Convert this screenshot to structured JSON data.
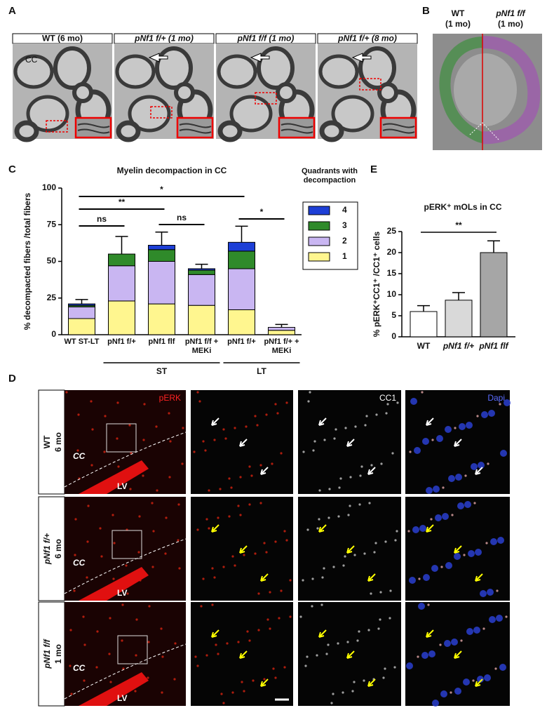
{
  "panels": {
    "a": "A",
    "b": "B",
    "c": "C",
    "d": "D",
    "e": "E"
  },
  "panel_a": {
    "headers": [
      "WT (6 mo)",
      "pNf1 f/+ (1 mo)",
      "pNf1 f/f (1 mo)",
      "pNf1 f/+ (8 mo)"
    ],
    "region": "CC"
  },
  "panel_b": {
    "left_genotype": "WT",
    "left_age": "(1 mo)",
    "right_genotype": "pNf1 f/f",
    "right_age": "(1 mo)"
  },
  "panel_d": {
    "rows": [
      {
        "genotype": "WT",
        "age": "6 mo"
      },
      {
        "genotype": "pNf1 f/+",
        "age": "6 mo"
      },
      {
        "genotype": "pNf1 f/f",
        "age": "1 mo"
      }
    ],
    "channels": [
      "pERK",
      "CC1",
      "Dapi"
    ],
    "region": "CC",
    "ventricle": "LV"
  },
  "chart_data": [
    {
      "type": "stacked_bar",
      "title": "Myelin decompaction in CC",
      "ylabel": "% decompacted fibers /total fibers",
      "categories": [
        "WT ST-LT",
        "pNf1 f/+",
        "pNf1 flf",
        "pNf1 f/f + MEKi",
        "pNf1 f/+",
        "pNf1 f/+ + MEKi"
      ],
      "series": [
        {
          "name": "1",
          "color": "#fff68f",
          "values": [
            11,
            23,
            21,
            20,
            17,
            3
          ]
        },
        {
          "name": "2",
          "color": "#c9b6f2",
          "values": [
            8,
            24,
            29,
            21,
            28,
            2
          ]
        },
        {
          "name": "3",
          "color": "#2f8a2a",
          "values": [
            1,
            8,
            8,
            3,
            12,
            0
          ]
        },
        {
          "name": "4",
          "color": "#1d3fd6",
          "values": [
            1,
            0,
            3,
            1,
            6,
            0
          ]
        }
      ],
      "errors": [
        3,
        12,
        9,
        3,
        11,
        2
      ],
      "ylim": [
        0,
        100
      ],
      "yticks": [
        0,
        25,
        50,
        75,
        100
      ],
      "legend_title": "Quadrants with decompaction",
      "groups": [
        "ST",
        "LT"
      ],
      "annotations": [
        "ns",
        "**",
        "ns",
        "*",
        "*"
      ]
    },
    {
      "type": "bar",
      "title": "pERK⁺ mOLs in CC",
      "ylabel": "% pERK⁺CC1⁺ /CC1⁺ cells",
      "categories": [
        "WT",
        "pNf1 f/+",
        "pNf1 flf"
      ],
      "values": [
        6,
        8.7,
        20
      ],
      "errors": [
        1.4,
        1.8,
        2.8
      ],
      "colors": [
        "#ffffff",
        "#d9d9d9",
        "#a6a6a6"
      ],
      "ylim": [
        0,
        25
      ],
      "yticks": [
        0,
        5,
        10,
        15,
        20,
        25
      ],
      "annotations": [
        "**"
      ]
    }
  ]
}
